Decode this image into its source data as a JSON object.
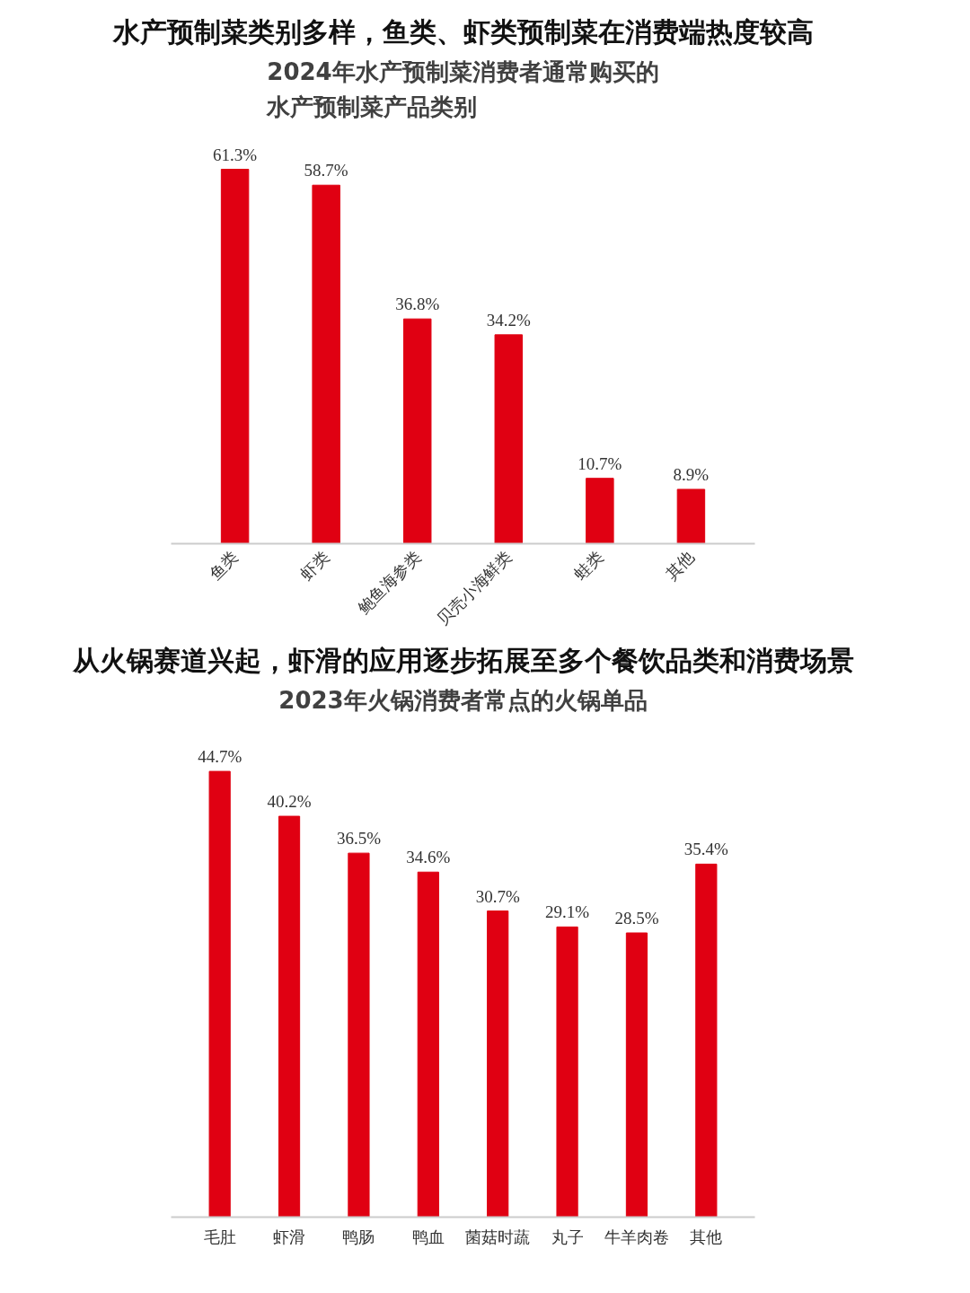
{
  "chart_data": [
    {
      "type": "bar",
      "title": "水产预制菜类别多样，鱼类、虾类预制菜在消费端热度较高",
      "subtitle": "2024年水产预制菜消费者通常购买的水产预制菜产品类别",
      "categories": [
        "鱼类",
        "虾类",
        "鲍鱼海参类",
        "贝壳小海鲜类",
        "蛙类",
        "其他"
      ],
      "values": [
        61.3,
        58.7,
        36.8,
        34.2,
        10.7,
        8.9
      ],
      "value_labels": [
        "61.3%",
        "58.7%",
        "36.8%",
        "34.2%",
        "10.7%",
        "8.9%"
      ],
      "color": "#e00012",
      "grid": false,
      "tick_labels": "x"
    },
    {
      "type": "bar",
      "title": "从火锅赛道兴起，虾滑的应用逐步拓展至多个餐饮品类和消费场景",
      "subtitle": "2023年火锅消费者常点的火锅单品",
      "categories": [
        "毛肚",
        "虾滑",
        "鸭肠",
        "鸭血",
        "菌菇时蔬",
        "丸子",
        "牛羊肉卷",
        "其他"
      ],
      "values": [
        44.7,
        40.2,
        36.5,
        34.6,
        30.7,
        29.1,
        28.5,
        35.4
      ],
      "value_labels": [
        "44.7%",
        "40.2%",
        "36.5%",
        "34.6%",
        "30.7%",
        "29.1%",
        "28.5%",
        "35.4%"
      ],
      "color": "#e00012",
      "grid": false,
      "tick_labels": "x"
    }
  ]
}
